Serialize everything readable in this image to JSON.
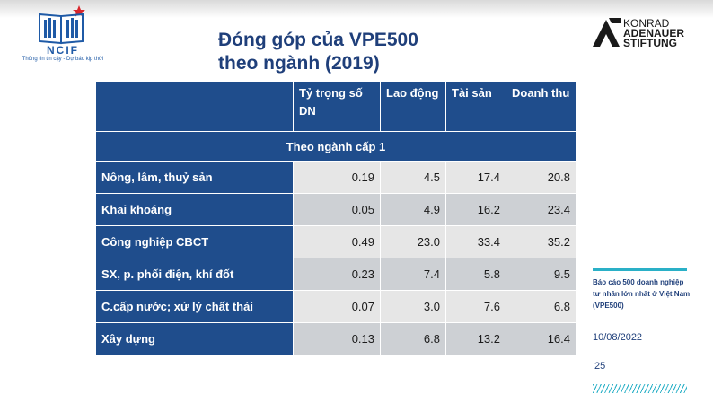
{
  "logo": {
    "name": "NCIF",
    "tagline": "Thông tin tin cậy - Dự báo kịp thời"
  },
  "title": {
    "line1": "Đóng góp của VPE500",
    "line2": "theo ngành (2019)"
  },
  "partner_logo": {
    "line1": "KONRAD",
    "line2": "ADENAUER",
    "line3": "STIFTUNG"
  },
  "table": {
    "columns": [
      "",
      "Tỷ trọng số DN",
      "Lao động",
      "Tài sản",
      "Doanh thu"
    ],
    "group_label": "Theo ngành cấp 1",
    "rows": [
      {
        "label": "Nông, lâm, thuỷ sản",
        "values": [
          "0.19",
          "4.5",
          "17.4",
          "20.8"
        ]
      },
      {
        "label": "Khai khoáng",
        "values": [
          "0.05",
          "4.9",
          "16.2",
          "23.4"
        ]
      },
      {
        "label": "Công nghiệp CBCT",
        "values": [
          "0.49",
          "23.0",
          "33.4",
          "35.2"
        ]
      },
      {
        "label": "SX, p. phối điện, khí đốt",
        "values": [
          "0.23",
          "7.4",
          "5.8",
          "9.5"
        ]
      },
      {
        "label": "C.cấp nước; xử lý chất thải",
        "values": [
          "0.07",
          "3.0",
          "7.6",
          "6.8"
        ]
      },
      {
        "label": "Xây dựng",
        "values": [
          "0.13",
          "6.8",
          "13.2",
          "16.4"
        ]
      }
    ]
  },
  "footer": {
    "report_name": "Báo cáo 500 doanh nghiệp tư nhân lớn nhất ở Việt Nam (VPE500)",
    "date": "10/08/2022",
    "page_number": "25"
  },
  "colors": {
    "header_blue": "#1f4d8c",
    "title_blue": "#1f3f7a",
    "accent_teal": "#2ab0c7",
    "row_light": "#e6e6e6",
    "row_dark": "#cdd0d4"
  }
}
